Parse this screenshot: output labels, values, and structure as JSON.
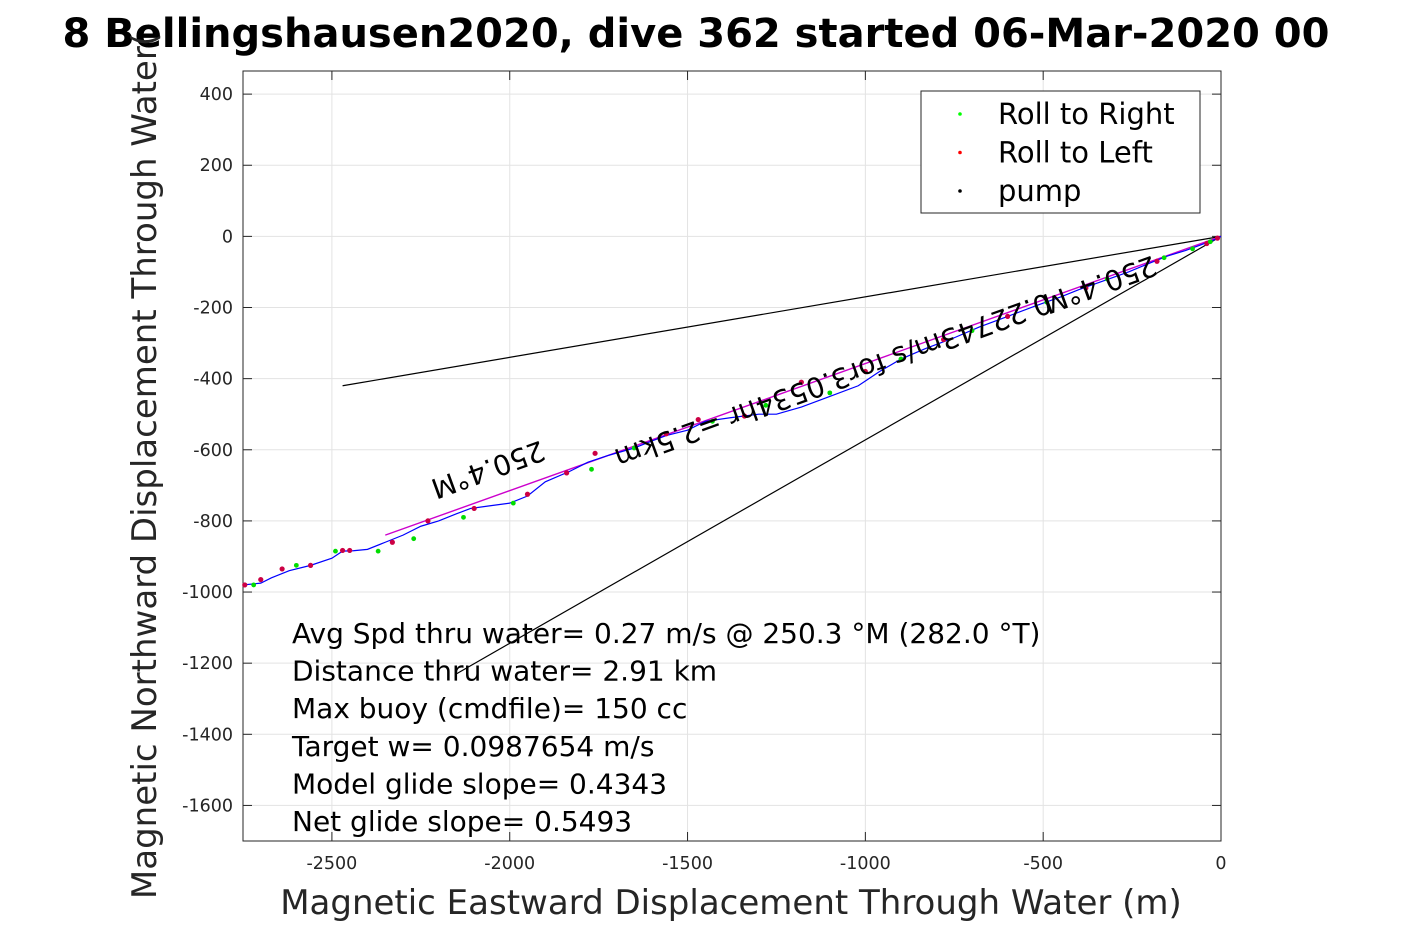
{
  "title": "8 Bellingshausen2020, dive 362 started 06-Mar-2020 00",
  "chart_data": {
    "type": "line",
    "xlabel": "Magnetic Eastward Displacement Through Water (m)",
    "ylabel": "Magnetic Northward Displacement Through Water(",
    "xlim": [
      -2750,
      0
    ],
    "ylim": [
      -1700,
      465
    ],
    "xticks": [
      -2500,
      -2000,
      -1500,
      -1000,
      -500,
      0
    ],
    "yticks": [
      400,
      200,
      0,
      -200,
      -400,
      -600,
      -800,
      -1000,
      -1200,
      -1400,
      -1600
    ],
    "grid": true,
    "legend_position": "top-right",
    "legend": [
      {
        "label": "Roll to Right",
        "color": "#00ff00"
      },
      {
        "label": "Roll to Left",
        "color": "#ff0000"
      },
      {
        "label": "pump",
        "color": "#000000"
      }
    ],
    "track": {
      "color": "#0000ff",
      "x": [
        0,
        -20,
        -60,
        -100,
        -150,
        -200,
        -260,
        -330,
        -400,
        -450,
        -520,
        -600,
        -680,
        -750,
        -830,
        -900,
        -960,
        -1020,
        -1100,
        -1180,
        -1250,
        -1300,
        -1380,
        -1450,
        -1500,
        -1560,
        -1600,
        -1650,
        -1720,
        -1780,
        -1830,
        -1900,
        -1950,
        -2000,
        -2060,
        -2110,
        -2150,
        -2200,
        -2250,
        -2300,
        -2350,
        -2400,
        -2440,
        -2470,
        -2500,
        -2560,
        -2620,
        -2670,
        -2700,
        -2750
      ],
      "y": [
        0,
        -10,
        -25,
        -40,
        -55,
        -75,
        -100,
        -125,
        -150,
        -170,
        -195,
        -225,
        -255,
        -285,
        -315,
        -345,
        -380,
        -420,
        -450,
        -480,
        -500,
        -500,
        -510,
        -520,
        -545,
        -560,
        -575,
        -595,
        -615,
        -635,
        -660,
        -690,
        -730,
        -750,
        -758,
        -765,
        -780,
        -800,
        -815,
        -840,
        -860,
        -880,
        -884,
        -885,
        -905,
        -925,
        -940,
        -960,
        -975,
        -980
      ]
    },
    "roll_right": {
      "x": [
        -30,
        -80,
        -160,
        -320,
        -490,
        -700,
        -900,
        -1100,
        -1280,
        -1430,
        -1650,
        -1770,
        -1990,
        -2130,
        -2270,
        -2370,
        -2490,
        -2600,
        -2720
      ],
      "y": [
        -15,
        -35,
        -60,
        -120,
        -185,
        -265,
        -345,
        -440,
        -475,
        -520,
        -595,
        -655,
        -750,
        -790,
        -850,
        -885,
        -885,
        -925,
        -980
      ]
    },
    "roll_left": {
      "x": [
        -10,
        -40,
        -180,
        -380,
        -600,
        -780,
        -1000,
        -1180,
        -1340,
        -1470,
        -1560,
        -1760,
        -1840,
        -1950,
        -2100,
        -2230,
        -2330,
        -2450,
        -2470,
        -2560,
        -2640,
        -2700,
        -2745
      ],
      "y": [
        -5,
        -20,
        -70,
        -145,
        -225,
        -290,
        -380,
        -410,
        -505,
        -515,
        -555,
        -610,
        -665,
        -725,
        -765,
        -800,
        -860,
        -883,
        -883,
        -925,
        -935,
        -965,
        -980
      ]
    },
    "model_line": {
      "color": "#cc00cc",
      "x": [
        0,
        -2350
      ],
      "y": [
        0,
        -840
      ]
    },
    "envelope_lines": [
      {
        "x": [
          0,
          -2470
        ],
        "y": [
          0,
          -420
        ]
      },
      {
        "x": [
          0,
          -2150
        ],
        "y": [
          0,
          -1230
        ]
      }
    ],
    "text_annotations": [
      {
        "text": "250.4°M",
        "x": -2070,
        "y": -630,
        "rotation": 160
      },
      {
        "text": "250.4°M",
        "x": -350,
        "y": -110,
        "rotation": 160
      },
      {
        "text": "0.22743m/s for3.0534hr =2.5km",
        "x": -1100,
        "y": -380,
        "rotation": 160
      }
    ],
    "stats": [
      "Avg Spd thru water=  0.27 m/s @ 250.3 °M (282.0 °T)",
      "Distance thru water=  2.91 km",
      "Max buoy (cmdfile)= 150 cc",
      "Target w= 0.0987654 m/s",
      "Model glide slope= 0.4343",
      "Net glide slope= 0.5493"
    ]
  }
}
